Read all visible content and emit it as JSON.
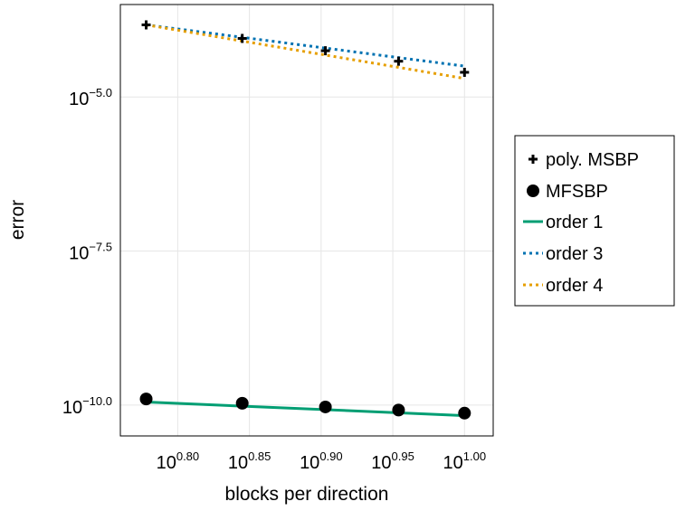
{
  "chart_data": {
    "type": "line",
    "title": "",
    "xlabel": "blocks per direction",
    "ylabel": "error",
    "x_scale": "log10",
    "y_scale": "log10",
    "xlim_log10": [
      0.76,
      1.02
    ],
    "ylim_log10": [
      -10.5,
      -3.5
    ],
    "x_ticks": [
      {
        "base": "10",
        "exp": "0.80",
        "value": 0.8
      },
      {
        "base": "10",
        "exp": "0.85",
        "value": 0.85
      },
      {
        "base": "10",
        "exp": "0.90",
        "value": 0.9
      },
      {
        "base": "10",
        "exp": "0.95",
        "value": 0.95
      },
      {
        "base": "10",
        "exp": "1.00",
        "value": 1.0
      }
    ],
    "y_ticks": [
      {
        "base": "10",
        "exp": "−5.0",
        "value": -5.0
      },
      {
        "base": "10",
        "exp": "−7.5",
        "value": -7.5
      },
      {
        "base": "10",
        "exp": "−10.0",
        "value": -10.0
      }
    ],
    "grid": true,
    "legend_position": "right",
    "series": [
      {
        "name": "poly. MSBP",
        "kind": "scatter",
        "marker": "cross",
        "color": "#000000",
        "x_log10": [
          0.778,
          0.845,
          0.903,
          0.954,
          1.0
        ],
        "y_log10": [
          -3.83,
          -4.05,
          -4.25,
          -4.42,
          -4.6
        ]
      },
      {
        "name": "MFSBP",
        "kind": "scatter",
        "marker": "circle",
        "color": "#000000",
        "x_log10": [
          0.778,
          0.845,
          0.903,
          0.954,
          1.0
        ],
        "y_log10": [
          -9.9,
          -9.97,
          -10.03,
          -10.08,
          -10.13
        ]
      },
      {
        "name": "order 1",
        "kind": "line",
        "style": "solid",
        "color": "#009e73",
        "x_log10": [
          0.778,
          1.0
        ],
        "y_log10": [
          -9.95,
          -10.17
        ]
      },
      {
        "name": "order 3",
        "kind": "line",
        "style": "dotted",
        "color": "#0072b2",
        "x_log10": [
          0.778,
          1.0
        ],
        "y_log10": [
          -3.83,
          -4.5
        ]
      },
      {
        "name": "order 4",
        "kind": "line",
        "style": "dotted",
        "color": "#e69f00",
        "x_log10": [
          0.778,
          1.0
        ],
        "y_log10": [
          -3.83,
          -4.7
        ]
      }
    ]
  }
}
